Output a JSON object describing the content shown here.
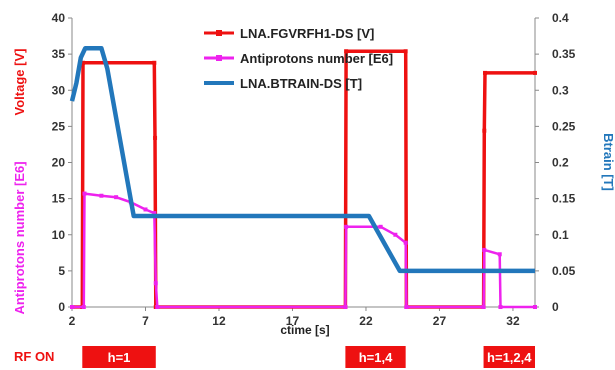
{
  "chart_data": {
    "type": "line",
    "xlabel": "ctime [s]",
    "x_ticks": [
      2,
      7,
      12,
      17,
      22,
      27,
      32
    ],
    "xlim": [
      2,
      33.5
    ],
    "y_left_label_top": "Voltage [V]",
    "y_left_label_bottom": "Antiprotons number [E6]",
    "y_left_ticks": [
      0,
      5,
      10,
      15,
      20,
      25,
      30,
      35,
      40
    ],
    "ylim_left": [
      0,
      40
    ],
    "y_right_label": "Btrain [T]",
    "y_right_ticks": [
      "0",
      "0.05",
      "0.1",
      "0.15",
      "0.2",
      "0.25",
      "0.3",
      "0.35",
      "0.4"
    ],
    "ylim_right": [
      0,
      0.4
    ],
    "legend_position": "top-center",
    "series": [
      {
        "name": "LNA.FGVRFH1-DS [V]",
        "axis": "left",
        "color": "#ee1111",
        "points": [
          [
            2,
            0
          ],
          [
            2.7,
            0
          ],
          [
            2.75,
            33.8
          ],
          [
            7.6,
            33.8
          ],
          [
            7.65,
            23.4
          ],
          [
            7.7,
            0
          ],
          [
            20.6,
            0
          ],
          [
            20.65,
            35.4
          ],
          [
            24.7,
            35.4
          ],
          [
            24.75,
            0
          ],
          [
            30.0,
            0
          ],
          [
            30.05,
            24.4
          ],
          [
            30.1,
            32.4
          ],
          [
            33.5,
            32.4
          ]
        ]
      },
      {
        "name": "Antiprotons number [E6]",
        "axis": "left",
        "color": "#ee22ee",
        "points": [
          [
            2,
            0
          ],
          [
            2.8,
            0
          ],
          [
            2.85,
            15.7
          ],
          [
            4,
            15.4
          ],
          [
            5,
            15.2
          ],
          [
            6,
            14.5
          ],
          [
            7,
            13.5
          ],
          [
            7.6,
            13.0
          ],
          [
            7.7,
            3.3
          ],
          [
            7.8,
            0
          ],
          [
            20.6,
            0
          ],
          [
            20.65,
            11.1
          ],
          [
            23,
            11.1
          ],
          [
            24,
            10
          ],
          [
            24.7,
            8.9
          ],
          [
            24.75,
            0
          ],
          [
            30.0,
            0
          ],
          [
            30.05,
            7.9
          ],
          [
            31.1,
            7.3
          ],
          [
            31.15,
            0
          ],
          [
            33.5,
            0
          ]
        ]
      },
      {
        "name": "LNA.BTRAIN-DS [T]",
        "axis": "right",
        "color": "#2277bb",
        "points": [
          [
            2,
            0.285
          ],
          [
            2.3,
            0.31
          ],
          [
            2.6,
            0.345
          ],
          [
            2.9,
            0.358
          ],
          [
            4.0,
            0.358
          ],
          [
            4.4,
            0.33
          ],
          [
            6.2,
            0.126
          ],
          [
            22.2,
            0.126
          ],
          [
            24.3,
            0.05
          ],
          [
            33.5,
            0.05
          ]
        ]
      }
    ],
    "rf_on": {
      "label": "RF ON",
      "segments": [
        {
          "label": "h=1",
          "x_start": 2.7,
          "x_end": 7.7
        },
        {
          "label": "h=1,4",
          "x_start": 20.6,
          "x_end": 24.7
        },
        {
          "label": "h=1,2,4",
          "x_start": 30.0,
          "x_end": 33.5
        }
      ]
    }
  }
}
